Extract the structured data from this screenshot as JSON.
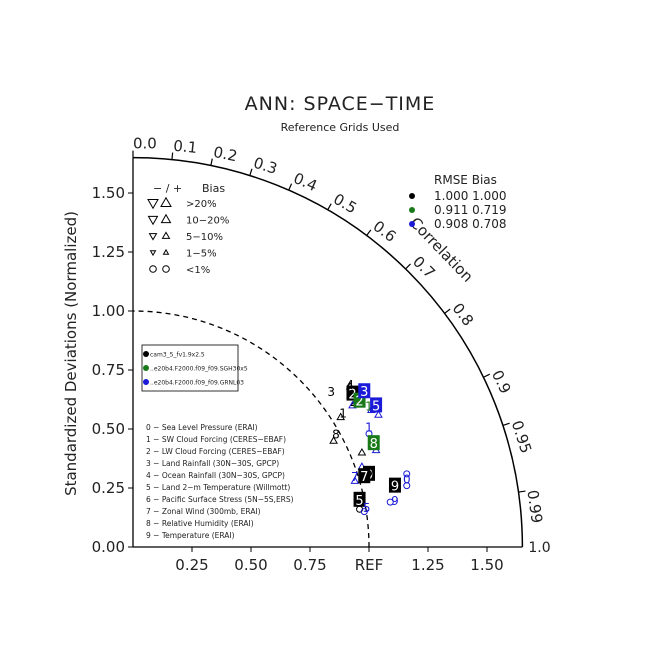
{
  "title": "ANN: SPACE−TIME",
  "subtitle": "Reference Grids Used",
  "colors": {
    "model_black": "#000000",
    "model_green": "#1a7a1a",
    "model_blue": "#1a1ad8"
  },
  "chart_data": {
    "type": "scatter",
    "subtype": "taylor-diagram",
    "ylabel": "Standardized Deviations (Normalized)",
    "corr_label": "Correlation",
    "ref_label": "REF",
    "std_range": [
      0,
      1.65
    ],
    "x_ticks": [
      "0.25",
      "0.50",
      "0.75",
      "REF",
      "1.25",
      "1.50"
    ],
    "x_tick_values": [
      0.25,
      0.5,
      0.75,
      1.0,
      1.25,
      1.5
    ],
    "y_ticks": [
      "0.00",
      "0.25",
      "0.50",
      "0.75",
      "1.00",
      "1.25",
      "1.50"
    ],
    "y_tick_values": [
      0,
      0.25,
      0.5,
      0.75,
      1.0,
      1.25,
      1.5
    ],
    "end_label": "1.0",
    "corr_ticks": [
      {
        "value": 0.0,
        "label": "0.0"
      },
      {
        "value": 0.1,
        "label": "0.1"
      },
      {
        "value": 0.2,
        "label": "0.2"
      },
      {
        "value": 0.3,
        "label": "0.3"
      },
      {
        "value": 0.4,
        "label": "0.4"
      },
      {
        "value": 0.5,
        "label": "0.5"
      },
      {
        "value": 0.6,
        "label": "0.6"
      },
      {
        "value": 0.7,
        "label": "0.7"
      },
      {
        "value": 0.8,
        "label": "0.8"
      },
      {
        "value": 0.9,
        "label": "0.9"
      },
      {
        "value": 0.95,
        "label": "0.95"
      },
      {
        "value": 0.99,
        "label": "0.99"
      }
    ],
    "bias_legend": {
      "header": "− / +",
      "header_bias": "Bias",
      "rows": [
        {
          "label": ">20%",
          "symbol": "tri-large"
        },
        {
          "label": "10−20%",
          "symbol": "tri-med"
        },
        {
          "label": "5−10%",
          "symbol": "tri-small"
        },
        {
          "label": "1−5%",
          "symbol": "tri-tiny"
        },
        {
          "label": "<1%",
          "symbol": "circle"
        }
      ]
    },
    "rmse_legend": {
      "header": "RMSE Bias",
      "rows": [
        {
          "text": "1.000 1.000",
          "color": "#000000"
        },
        {
          "text": "0.911 0.719",
          "color": "#1a7a1a"
        },
        {
          "text": "0.908 0.708",
          "color": "#1a1ad8"
        }
      ]
    },
    "series": [
      {
        "name": "cam3_5_fv1.9x2.5",
        "color": "#000000"
      },
      {
        "name": "..e20b4.F2000.f09_f09.SGH30x5",
        "color": "#1a7a1a"
      },
      {
        "name": "..e20b4.F2000.f09_f09.GRNL03",
        "color": "#1a1ad8"
      }
    ],
    "variables": [
      "0 − Sea Level Pressure (ERAI)",
      "1 − SW Cloud Forcing (CERES−EBAF)",
      "2 − LW Cloud Forcing (CERES−EBAF)",
      "3 − Land Rainfall (30N−30S, GPCP)",
      "4 − Ocean Rainfall (30N−30S, GPCP)",
      "5 − Land 2−m Temperature (Willmott)",
      "6 − Pacific Surface Stress (5N−5S,ERS)",
      "7 − Zonal Wind (300mb, ERAI)",
      "8 − Relative Humidity (ERAI)",
      "9 − Temperature (ERAI)"
    ],
    "points": [
      {
        "series": 0,
        "label": "0",
        "x": 1.0,
        "y": 0.31,
        "boxed": true
      },
      {
        "series": 0,
        "label": "1",
        "x": 0.89,
        "y": 0.57,
        "boxed": false
      },
      {
        "series": 0,
        "label": "2",
        "x": 0.93,
        "y": 0.65,
        "boxed": true
      },
      {
        "series": 0,
        "label": "3",
        "x": 0.84,
        "y": 0.66,
        "boxed": false
      },
      {
        "series": 0,
        "label": "4",
        "x": 0.92,
        "y": 0.69,
        "boxed": false
      },
      {
        "series": 0,
        "label": "5",
        "x": 0.96,
        "y": 0.2,
        "boxed": true
      },
      {
        "series": 0,
        "label": "6",
        "x": 1.0,
        "y": 0.32,
        "boxed": false
      },
      {
        "series": 0,
        "label": "7",
        "x": 0.98,
        "y": 0.3,
        "boxed": true
      },
      {
        "series": 0,
        "label": "8",
        "x": 0.86,
        "y": 0.48,
        "boxed": false
      },
      {
        "series": 0,
        "label": "9",
        "x": 1.11,
        "y": 0.26,
        "boxed": true
      },
      {
        "series": 1,
        "label": "2",
        "x": 0.96,
        "y": 0.62,
        "boxed": true
      },
      {
        "series": 1,
        "label": "8",
        "x": 1.02,
        "y": 0.44,
        "boxed": true
      },
      {
        "series": 1,
        "label": "1",
        "x": 1.0,
        "y": 0.6,
        "boxed": false
      },
      {
        "series": 2,
        "label": "3",
        "x": 0.98,
        "y": 0.66,
        "boxed": true
      },
      {
        "series": 2,
        "label": "5",
        "x": 1.03,
        "y": 0.6,
        "boxed": true
      },
      {
        "series": 2,
        "label": "1",
        "x": 1.0,
        "y": 0.51,
        "boxed": false
      },
      {
        "series": 2,
        "label": "7",
        "x": 0.94,
        "y": 0.3,
        "boxed": false
      },
      {
        "series": 2,
        "label": "5",
        "x": 0.99,
        "y": 0.17,
        "boxed": false
      },
      {
        "series": 2,
        "label": "9",
        "x": 1.11,
        "y": 0.2,
        "boxed": false
      },
      {
        "series": 2,
        "label": "0",
        "x": 1.16,
        "y": 0.29,
        "boxed": false
      }
    ],
    "markers": [
      {
        "series": 0,
        "shape": "up",
        "x": 0.88,
        "y": 0.55
      },
      {
        "series": 0,
        "shape": "up",
        "x": 0.92,
        "y": 0.68
      },
      {
        "series": 0,
        "shape": "up",
        "x": 0.85,
        "y": 0.45
      },
      {
        "series": 0,
        "shape": "up",
        "x": 0.94,
        "y": 0.61
      },
      {
        "series": 0,
        "shape": "up",
        "x": 0.97,
        "y": 0.4
      },
      {
        "series": 0,
        "shape": "circle",
        "x": 0.96,
        "y": 0.16
      },
      {
        "series": 2,
        "shape": "up",
        "x": 0.93,
        "y": 0.6
      },
      {
        "series": 2,
        "shape": "up",
        "x": 1.01,
        "y": 0.58
      },
      {
        "series": 2,
        "shape": "up",
        "x": 1.04,
        "y": 0.56
      },
      {
        "series": 2,
        "shape": "up",
        "x": 1.03,
        "y": 0.41
      },
      {
        "series": 2,
        "shape": "up",
        "x": 0.97,
        "y": 0.34
      },
      {
        "series": 2,
        "shape": "up",
        "x": 0.94,
        "y": 0.28
      },
      {
        "series": 2,
        "shape": "circle",
        "x": 1.0,
        "y": 0.48
      },
      {
        "series": 2,
        "shape": "circle",
        "x": 1.09,
        "y": 0.19
      },
      {
        "series": 2,
        "shape": "circle",
        "x": 0.98,
        "y": 0.15
      },
      {
        "series": 2,
        "shape": "circle",
        "x": 1.16,
        "y": 0.31
      },
      {
        "series": 2,
        "shape": "circle",
        "x": 1.16,
        "y": 0.26
      }
    ]
  }
}
